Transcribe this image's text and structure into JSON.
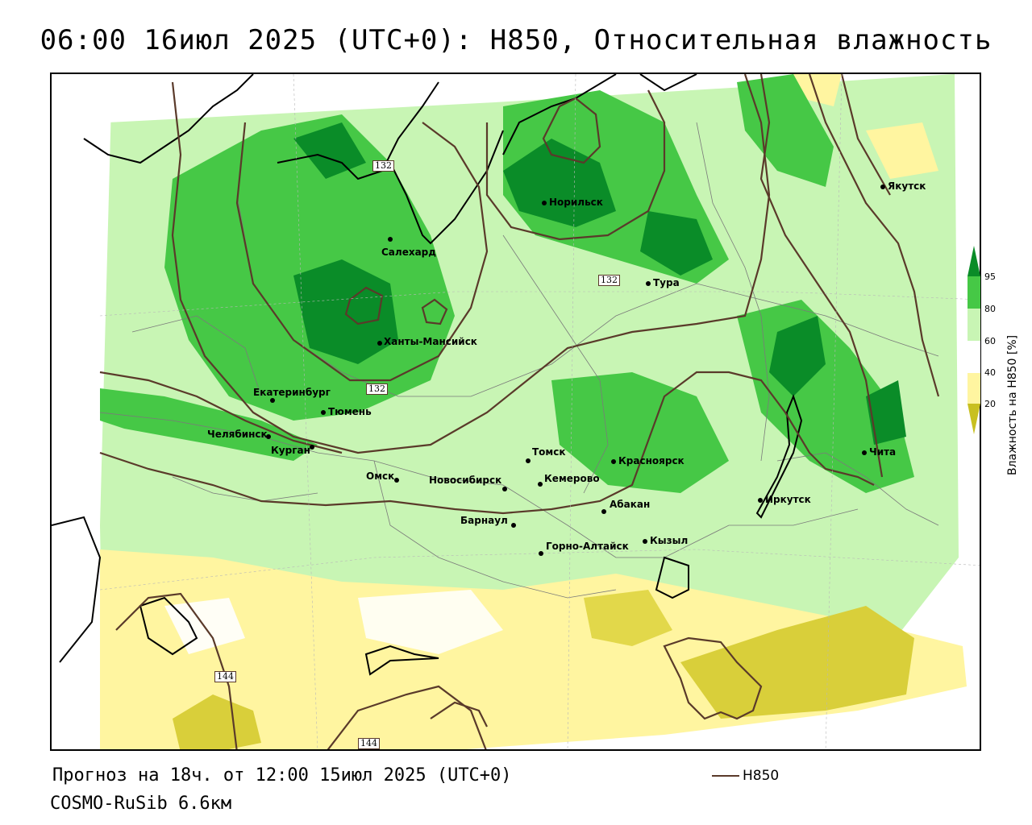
{
  "title": "06:00 16июл 2025 (UTC+0): H850, Относительная влажность",
  "forecast_line": "Прогноз на 18ч. от 12:00 15июл 2025 (UTC+0)",
  "model_line": "COSMO-RuSib 6.6км",
  "contour_legend": {
    "label": "H850",
    "color": "#5a3a2a"
  },
  "colorbar": {
    "title": "Влажность на H850 [%]",
    "ticks": [
      "95",
      "80",
      "60",
      "40",
      "20"
    ],
    "colors": {
      "very_dry": "#c8c020",
      "dry": "#fff5a0",
      "medium": "#ffffff",
      "moist": "#c8f5b4",
      "wet": "#46c846",
      "saturated": "#0a8c28"
    }
  },
  "isoline_labels": [
    "132",
    "132",
    "132",
    "144",
    "144"
  ],
  "cities": [
    "Якутск",
    "Норильск",
    "Салехард",
    "Тура",
    "Ханты-Мансийск",
    "Екатеринбург",
    "Тюмень",
    "Челябинск",
    "Курган",
    "Омск",
    "Новосибирск",
    "Томск",
    "Кемерово",
    "Красноярск",
    "Барнаул",
    "Абакан",
    "Горно-Алтайск",
    "Кызыл",
    "Иркутск",
    "Чита"
  ]
}
